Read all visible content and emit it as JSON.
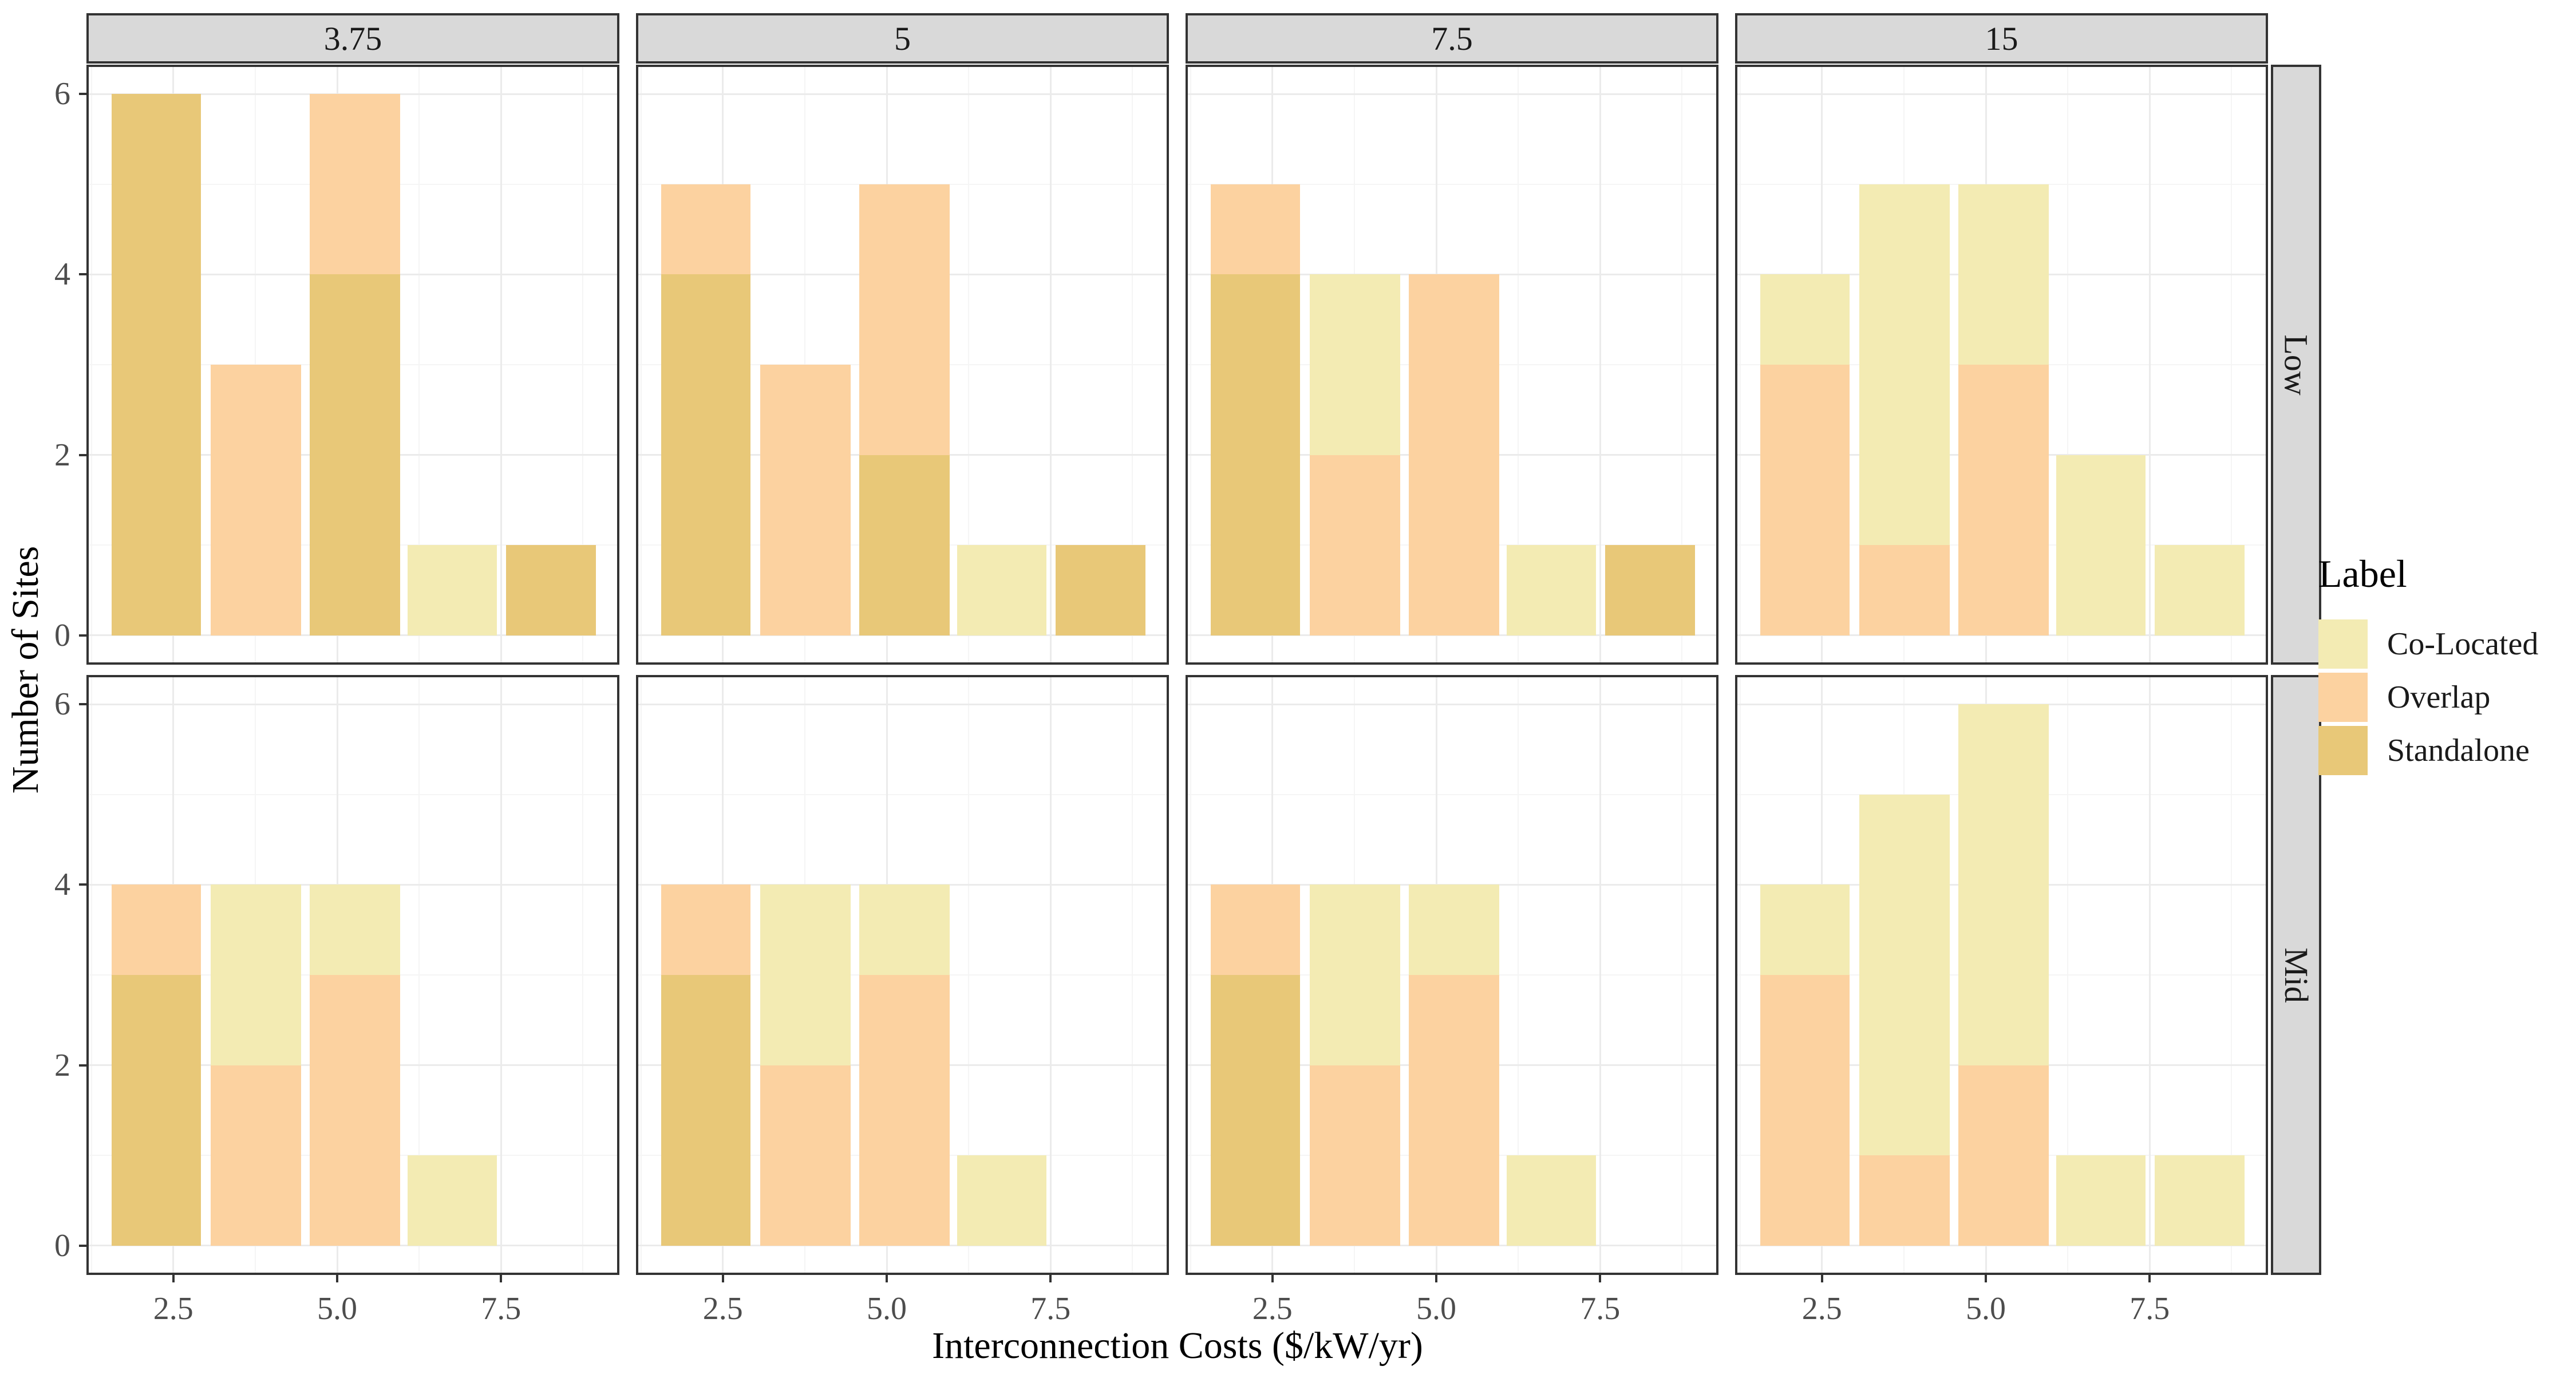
{
  "chart_data": {
    "type": "bar",
    "subtype": "faceted-stacked-histogram",
    "xlabel": "Interconnection Costs ($/kW/yr)",
    "ylabel": "Number of Sites",
    "x_ticks": [
      2.5,
      5.0,
      7.5
    ],
    "x_tick_labels": [
      "2.5",
      "5.0",
      "7.5"
    ],
    "x_minor_ticks": [
      1.25,
      3.75,
      6.25,
      8.75
    ],
    "y_ticks": [
      0,
      2,
      4,
      6
    ],
    "y_tick_labels": [
      "0",
      "2",
      "4",
      "6"
    ],
    "y_minor_ticks": [
      1,
      3,
      5
    ],
    "ylim": [
      0,
      6
    ],
    "x_domain": [
      1.21,
      9.27
    ],
    "bin_edges": [
      [
        1.56,
        2.92
      ],
      [
        3.07,
        4.45
      ],
      [
        4.58,
        5.96
      ],
      [
        6.07,
        7.44
      ],
      [
        7.58,
        8.95
      ]
    ],
    "grid": true,
    "legend_position": "right",
    "col_facets": [
      "3.75",
      "5",
      "7.5",
      "15"
    ],
    "row_facets": [
      "Low",
      "Mid"
    ],
    "legend": {
      "title": "Label",
      "entries": [
        {
          "label": "Co-Located",
          "color": "#f3ebb3"
        },
        {
          "label": "Overlap",
          "color": "#fcd2a0"
        },
        {
          "label": "Standalone",
          "color": "#e8c878"
        }
      ]
    },
    "stack_order_bottom_to_top": [
      "Standalone",
      "Overlap",
      "Co-Located"
    ],
    "panels": [
      {
        "col": "3.75",
        "row": "Low",
        "bars": [
          {
            "bin": 0,
            "stack": [
              {
                "label": "Standalone",
                "count": 6
              }
            ]
          },
          {
            "bin": 1,
            "stack": [
              {
                "label": "Overlap",
                "count": 3
              }
            ]
          },
          {
            "bin": 2,
            "stack": [
              {
                "label": "Standalone",
                "count": 4
              },
              {
                "label": "Overlap",
                "count": 2
              }
            ]
          },
          {
            "bin": 3,
            "stack": [
              {
                "label": "Co-Located",
                "count": 1
              }
            ]
          },
          {
            "bin": 4,
            "stack": [
              {
                "label": "Standalone",
                "count": 1
              }
            ]
          }
        ]
      },
      {
        "col": "5",
        "row": "Low",
        "bars": [
          {
            "bin": 0,
            "stack": [
              {
                "label": "Standalone",
                "count": 4
              },
              {
                "label": "Overlap",
                "count": 1
              }
            ]
          },
          {
            "bin": 1,
            "stack": [
              {
                "label": "Overlap",
                "count": 3
              }
            ]
          },
          {
            "bin": 2,
            "stack": [
              {
                "label": "Standalone",
                "count": 2
              },
              {
                "label": "Overlap",
                "count": 3
              }
            ]
          },
          {
            "bin": 3,
            "stack": [
              {
                "label": "Co-Located",
                "count": 1
              }
            ]
          },
          {
            "bin": 4,
            "stack": [
              {
                "label": "Standalone",
                "count": 1
              }
            ]
          }
        ]
      },
      {
        "col": "7.5",
        "row": "Low",
        "bars": [
          {
            "bin": 0,
            "stack": [
              {
                "label": "Standalone",
                "count": 4
              },
              {
                "label": "Overlap",
                "count": 1
              }
            ]
          },
          {
            "bin": 1,
            "stack": [
              {
                "label": "Overlap",
                "count": 2
              },
              {
                "label": "Co-Located",
                "count": 2
              }
            ]
          },
          {
            "bin": 2,
            "stack": [
              {
                "label": "Overlap",
                "count": 4
              }
            ]
          },
          {
            "bin": 3,
            "stack": [
              {
                "label": "Co-Located",
                "count": 1
              }
            ]
          },
          {
            "bin": 4,
            "stack": [
              {
                "label": "Standalone",
                "count": 1
              }
            ]
          }
        ]
      },
      {
        "col": "15",
        "row": "Low",
        "bars": [
          {
            "bin": 0,
            "stack": [
              {
                "label": "Overlap",
                "count": 3
              },
              {
                "label": "Co-Located",
                "count": 1
              }
            ]
          },
          {
            "bin": 1,
            "stack": [
              {
                "label": "Overlap",
                "count": 1
              },
              {
                "label": "Co-Located",
                "count": 4
              }
            ]
          },
          {
            "bin": 2,
            "stack": [
              {
                "label": "Overlap",
                "count": 3
              },
              {
                "label": "Co-Located",
                "count": 2
              }
            ]
          },
          {
            "bin": 3,
            "stack": [
              {
                "label": "Co-Located",
                "count": 2
              }
            ]
          },
          {
            "bin": 4,
            "stack": [
              {
                "label": "Co-Located",
                "count": 1
              }
            ]
          }
        ]
      },
      {
        "col": "3.75",
        "row": "Mid",
        "bars": [
          {
            "bin": 0,
            "stack": [
              {
                "label": "Standalone",
                "count": 3
              },
              {
                "label": "Overlap",
                "count": 1
              }
            ]
          },
          {
            "bin": 1,
            "stack": [
              {
                "label": "Overlap",
                "count": 2
              },
              {
                "label": "Co-Located",
                "count": 2
              }
            ]
          },
          {
            "bin": 2,
            "stack": [
              {
                "label": "Overlap",
                "count": 3
              },
              {
                "label": "Co-Located",
                "count": 1
              }
            ]
          },
          {
            "bin": 3,
            "stack": [
              {
                "label": "Co-Located",
                "count": 1
              }
            ]
          }
        ]
      },
      {
        "col": "5",
        "row": "Mid",
        "bars": [
          {
            "bin": 0,
            "stack": [
              {
                "label": "Standalone",
                "count": 3
              },
              {
                "label": "Overlap",
                "count": 1
              }
            ]
          },
          {
            "bin": 1,
            "stack": [
              {
                "label": "Overlap",
                "count": 2
              },
              {
                "label": "Co-Located",
                "count": 2
              }
            ]
          },
          {
            "bin": 2,
            "stack": [
              {
                "label": "Overlap",
                "count": 3
              },
              {
                "label": "Co-Located",
                "count": 1
              }
            ]
          },
          {
            "bin": 3,
            "stack": [
              {
                "label": "Co-Located",
                "count": 1
              }
            ]
          }
        ]
      },
      {
        "col": "7.5",
        "row": "Mid",
        "bars": [
          {
            "bin": 0,
            "stack": [
              {
                "label": "Standalone",
                "count": 3
              },
              {
                "label": "Overlap",
                "count": 1
              }
            ]
          },
          {
            "bin": 1,
            "stack": [
              {
                "label": "Overlap",
                "count": 2
              },
              {
                "label": "Co-Located",
                "count": 2
              }
            ]
          },
          {
            "bin": 2,
            "stack": [
              {
                "label": "Overlap",
                "count": 3
              },
              {
                "label": "Co-Located",
                "count": 1
              }
            ]
          },
          {
            "bin": 3,
            "stack": [
              {
                "label": "Co-Located",
                "count": 1
              }
            ]
          }
        ]
      },
      {
        "col": "15",
        "row": "Mid",
        "bars": [
          {
            "bin": 0,
            "stack": [
              {
                "label": "Overlap",
                "count": 3
              },
              {
                "label": "Co-Located",
                "count": 1
              }
            ]
          },
          {
            "bin": 1,
            "stack": [
              {
                "label": "Overlap",
                "count": 1
              },
              {
                "label": "Co-Located",
                "count": 4
              }
            ]
          },
          {
            "bin": 2,
            "stack": [
              {
                "label": "Overlap",
                "count": 2
              },
              {
                "label": "Co-Located",
                "count": 4
              }
            ]
          },
          {
            "bin": 3,
            "stack": [
              {
                "label": "Co-Located",
                "count": 1
              }
            ]
          },
          {
            "bin": 4,
            "stack": [
              {
                "label": "Co-Located",
                "count": 1
              }
            ]
          }
        ]
      }
    ]
  }
}
